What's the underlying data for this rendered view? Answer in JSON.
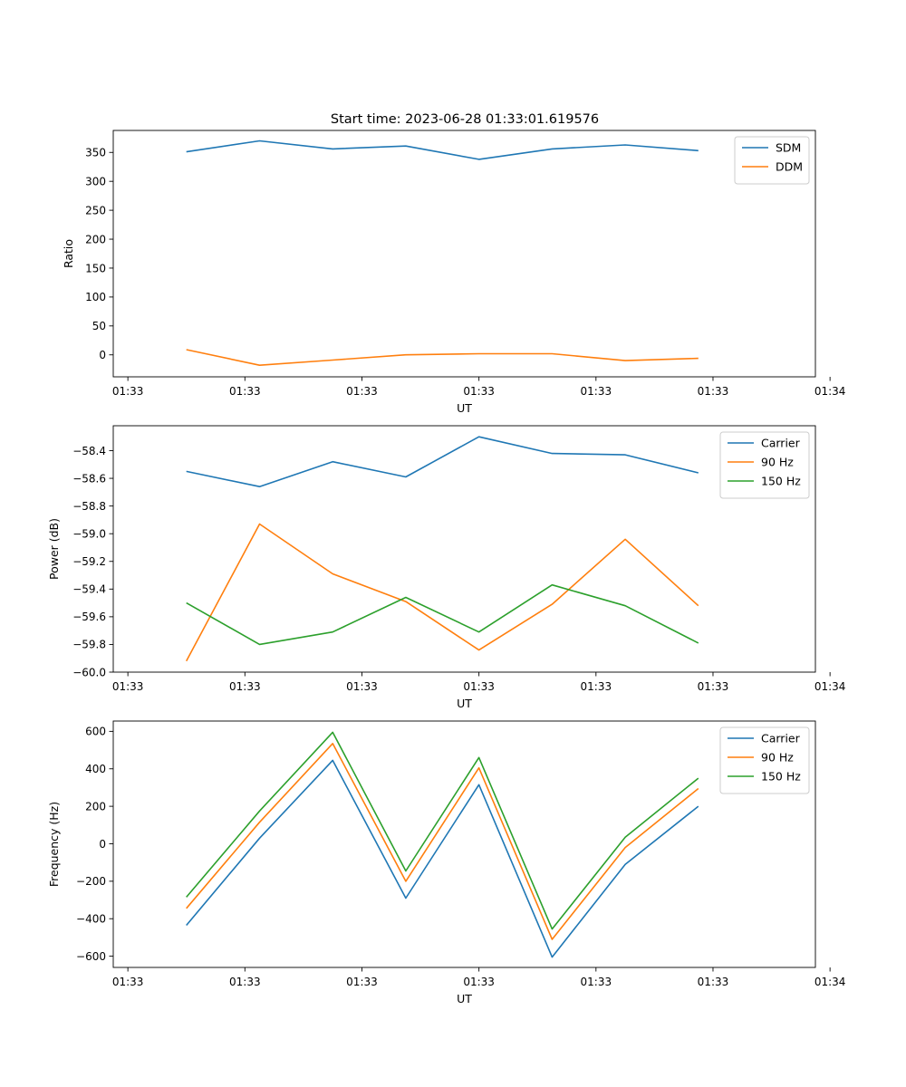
{
  "figure": {
    "title": "Start time: 2023-06-28 01:33:01.619576"
  },
  "colors": {
    "blue": "#1f77b4",
    "orange": "#ff7f0e",
    "green": "#2ca02c"
  },
  "chart_data": [
    {
      "type": "line",
      "title": "Start time: 2023-06-28 01:33:01.619576",
      "xlabel": "UT",
      "ylabel": "Ratio",
      "x_tick_labels": [
        "01:33",
        "01:33",
        "01:33",
        "01:33",
        "01:33",
        "01:33",
        "01:34"
      ],
      "xlim": [
        0,
        9.6
      ],
      "ylim": [
        -38,
        388
      ],
      "y_ticks": [
        0,
        50,
        100,
        150,
        200,
        250,
        300,
        350
      ],
      "grid": false,
      "legend": "top-right",
      "x": [
        1,
        2,
        3,
        4,
        5,
        6,
        7,
        8
      ],
      "series": [
        {
          "name": "SDM",
          "color": "#1f77b4",
          "values": [
            351,
            370,
            356,
            361,
            338,
            356,
            363,
            353
          ]
        },
        {
          "name": "DDM",
          "color": "#ff7f0e",
          "values": [
            9,
            -18,
            -9,
            0,
            2,
            2,
            -10,
            -6
          ]
        }
      ]
    },
    {
      "type": "line",
      "xlabel": "UT",
      "ylabel": "Power (dB)",
      "x_tick_labels": [
        "01:33",
        "01:33",
        "01:33",
        "01:33",
        "01:33",
        "01:33",
        "01:34"
      ],
      "xlim": [
        0,
        9.6
      ],
      "ylim": [
        -60.0,
        -58.22
      ],
      "y_ticks": [
        -60.0,
        -59.8,
        -59.6,
        -59.4,
        -59.2,
        -59.0,
        -58.8,
        -58.6,
        -58.4
      ],
      "y_tick_labels": [
        "−60.0",
        "−59.8",
        "−59.6",
        "−59.4",
        "−59.2",
        "−59.0",
        "−58.8",
        "−58.6",
        "−58.4"
      ],
      "grid": false,
      "legend": "top-right",
      "x": [
        1,
        2,
        3,
        4,
        5,
        6,
        7,
        8
      ],
      "series": [
        {
          "name": "Carrier",
          "color": "#1f77b4",
          "values": [
            -58.55,
            -58.66,
            -58.48,
            -58.59,
            -58.3,
            -58.42,
            -58.43,
            -58.56
          ]
        },
        {
          "name": "90 Hz",
          "color": "#ff7f0e",
          "values": [
            -59.92,
            -58.93,
            -59.29,
            -59.49,
            -59.84,
            -59.51,
            -59.04,
            -59.52
          ]
        },
        {
          "name": "150 Hz",
          "color": "#2ca02c",
          "values": [
            -59.5,
            -59.8,
            -59.71,
            -59.46,
            -59.71,
            -59.37,
            -59.52,
            -59.79
          ]
        }
      ]
    },
    {
      "type": "line",
      "xlabel": "UT",
      "ylabel": "Frequency (Hz)",
      "x_tick_labels": [
        "01:33",
        "01:33",
        "01:33",
        "01:33",
        "01:33",
        "01:33",
        "01:34"
      ],
      "xlim": [
        0,
        9.6
      ],
      "ylim": [
        -660,
        655
      ],
      "y_ticks": [
        -600,
        -400,
        -200,
        0,
        200,
        400,
        600
      ],
      "y_tick_labels": [
        "−600",
        "−400",
        "−200",
        "0",
        "200",
        "400",
        "600"
      ],
      "grid": false,
      "legend": "top-right",
      "x": [
        1,
        2,
        3,
        4,
        5,
        6,
        7,
        8
      ],
      "series": [
        {
          "name": "Carrier",
          "color": "#1f77b4",
          "values": [
            -435,
            30,
            445,
            -290,
            315,
            -605,
            -110,
            200
          ]
        },
        {
          "name": "90 Hz",
          "color": "#ff7f0e",
          "values": [
            -345,
            115,
            535,
            -200,
            405,
            -510,
            -20,
            295
          ]
        },
        {
          "name": "150 Hz",
          "color": "#2ca02c",
          "values": [
            -285,
            175,
            595,
            -145,
            460,
            -455,
            35,
            350
          ]
        }
      ]
    }
  ]
}
